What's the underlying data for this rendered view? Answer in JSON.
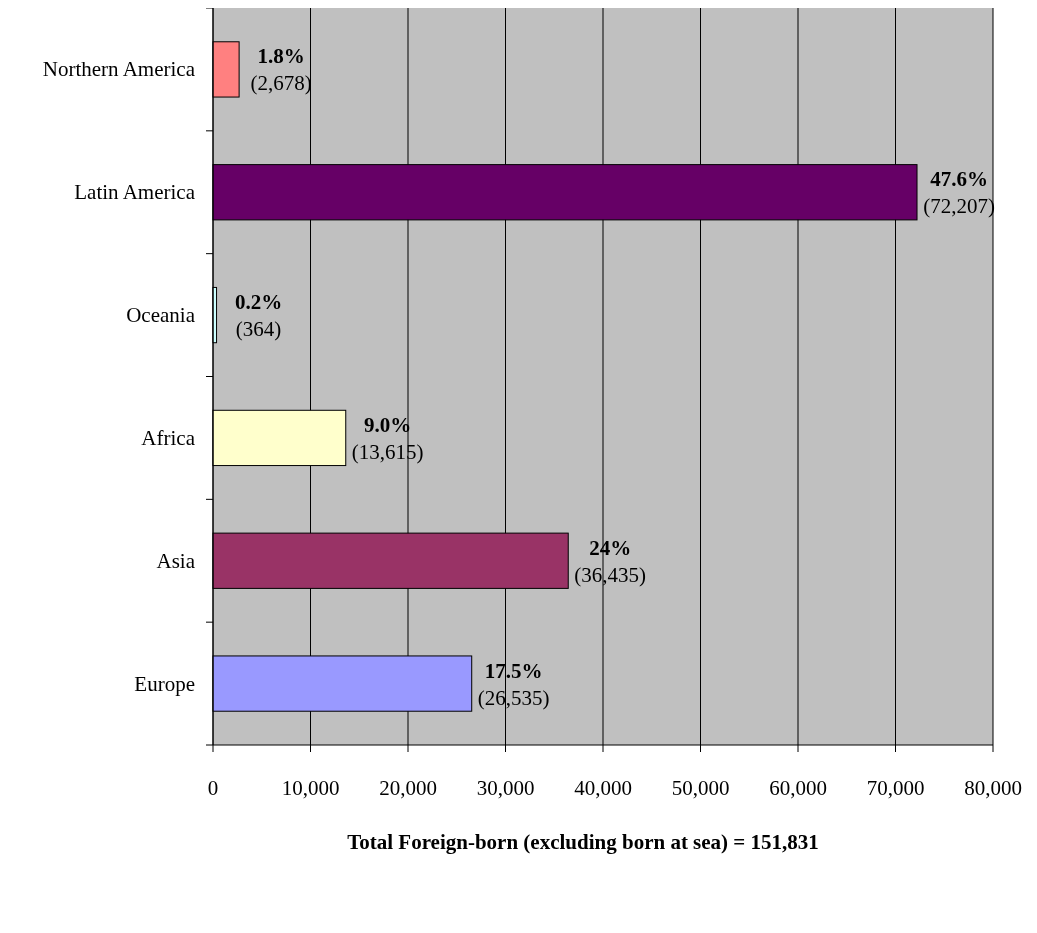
{
  "chart_data": {
    "type": "bar",
    "orientation": "horizontal",
    "categories": [
      "Northern America",
      "Latin America",
      "Oceania",
      "Africa",
      "Asia",
      "Europe"
    ],
    "values": [
      2678,
      72207,
      364,
      13615,
      36435,
      26535
    ],
    "colors": [
      "#ff8080",
      "#660066",
      "#ccffff",
      "#ffffcc",
      "#993366",
      "#9999ff"
    ],
    "value_labels": [
      "1.8%\n(2,678)",
      "47.6%\n(72,207)",
      "0.2%\n(364)",
      "9.0%\n(13,615)",
      "24%\n(36,435)",
      "17.5%\n(26,535)"
    ],
    "xlim": [
      0,
      80000
    ],
    "xticks": [
      0,
      {
        "value": 10000,
        "label": "10,000"
      },
      {
        "value": 20000,
        "label": "20,000"
      },
      {
        "value": 30000,
        "label": "30,000"
      },
      {
        "value": 40000,
        "label": "40,000"
      },
      {
        "value": 50000,
        "label": "50,000"
      },
      {
        "value": 60000,
        "label": "60,000"
      },
      {
        "value": 70000,
        "label": "70,000"
      },
      {
        "value": 80000,
        "label": "80,000"
      }
    ],
    "xlabel": "Total Foreign-born (excluding born at sea) = 151,831",
    "grid": "x"
  }
}
